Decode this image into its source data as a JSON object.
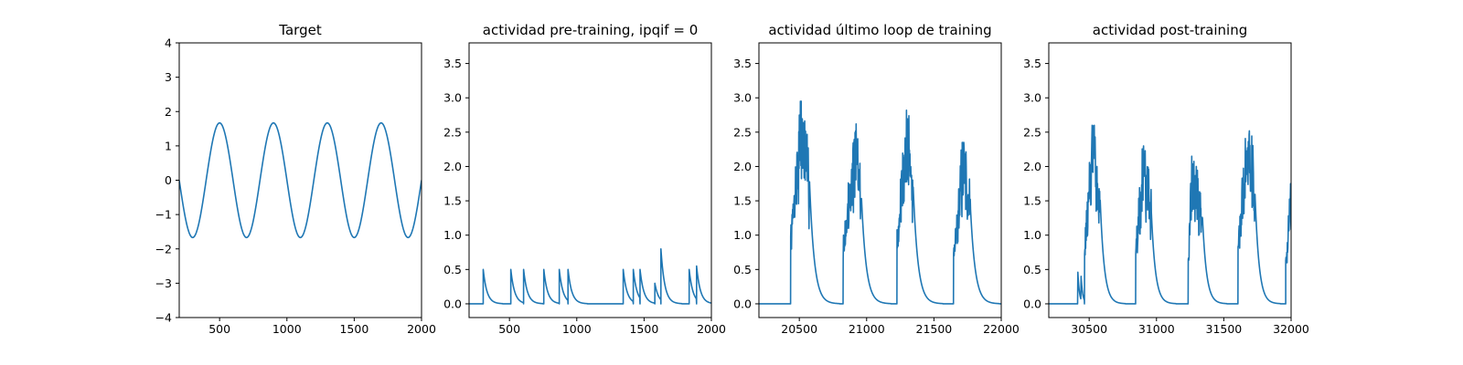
{
  "figure": {
    "line_color": "#1f77b4"
  },
  "chart_data": [
    {
      "type": "line",
      "title": "Target",
      "xlim": [
        200,
        2000
      ],
      "ylim": [
        -4,
        4
      ],
      "xticks": [
        500,
        1000,
        1500,
        2000
      ],
      "yticks": [
        -4,
        -3,
        -2,
        -1,
        0,
        1,
        2,
        3,
        4
      ],
      "xtick_labels": [
        "500",
        "1000",
        "1500",
        "2000"
      ],
      "ytick_labels": [
        "−4",
        "−3",
        "−2",
        "−1",
        "0",
        "1",
        "2",
        "3",
        "4"
      ],
      "series": [
        {
          "generator": "sine",
          "amplitude": 1.67,
          "period": 400,
          "peak_at": 500,
          "x_range": [
            200,
            2000
          ]
        }
      ]
    },
    {
      "type": "line",
      "title": "actividad pre-training, ipqif = 0",
      "xlim": [
        200,
        2000
      ],
      "ylim": [
        -0.2,
        3.8
      ],
      "xticks": [
        500,
        1000,
        1500,
        2000
      ],
      "yticks": [
        0.0,
        0.5,
        1.0,
        1.5,
        2.0,
        2.5,
        3.0,
        3.5
      ],
      "xtick_labels": [
        "500",
        "1000",
        "1500",
        "2000"
      ],
      "ytick_labels": [
        "0.0",
        "0.5",
        "1.0",
        "1.5",
        "2.0",
        "2.5",
        "3.0",
        "3.5"
      ],
      "series": [
        {
          "generator": "spikes",
          "x_range": [
            200,
            2000
          ],
          "decay": 28,
          "spikes": [
            [
              305,
              0.5
            ],
            [
              510,
              0.5
            ],
            [
              605,
              0.5
            ],
            [
              755,
              0.5
            ],
            [
              870,
              0.5
            ],
            [
              935,
              0.5
            ],
            [
              1345,
              0.5
            ],
            [
              1420,
              0.5
            ],
            [
              1470,
              0.5
            ],
            [
              1580,
              0.3
            ],
            [
              1625,
              0.8
            ],
            [
              1835,
              0.5
            ],
            [
              1890,
              0.55
            ]
          ]
        }
      ]
    },
    {
      "type": "line",
      "title": "actividad último loop de training",
      "xlim": [
        20200,
        22000
      ],
      "ylim": [
        -0.2,
        3.8
      ],
      "xticks": [
        20500,
        21000,
        21500,
        22000
      ],
      "yticks": [
        0.0,
        0.5,
        1.0,
        1.5,
        2.0,
        2.5,
        3.0,
        3.5
      ],
      "xtick_labels": [
        "20500",
        "21000",
        "21500",
        "22000"
      ],
      "ytick_labels": [
        "0.0",
        "0.5",
        "1.0",
        "1.5",
        "2.0",
        "2.5",
        "3.0",
        "3.5"
      ],
      "series": [
        {
          "generator": "bursts",
          "x_range": [
            20200,
            22000
          ],
          "seed": 7,
          "bursts": [
            {
              "start": 20435,
              "peak_x": 20515,
              "end": 20575,
              "peak": 2.95,
              "decay": 35
            },
            {
              "start": 20825,
              "peak_x": 20920,
              "end": 20960,
              "peak": 2.62,
              "decay": 35
            },
            {
              "start": 21225,
              "peak_x": 21300,
              "end": 21345,
              "peak": 2.82,
              "decay": 35
            },
            {
              "start": 21645,
              "peak_x": 21720,
              "end": 21770,
              "peak": 2.35,
              "decay": 35
            }
          ]
        }
      ]
    },
    {
      "type": "line",
      "title": "actividad post-training",
      "xlim": [
        30200,
        32000
      ],
      "ylim": [
        -0.2,
        3.8
      ],
      "xticks": [
        30500,
        31000,
        31500,
        32000
      ],
      "yticks": [
        0.0,
        0.5,
        1.0,
        1.5,
        2.0,
        2.5,
        3.0,
        3.5
      ],
      "xtick_labels": [
        "30500",
        "31000",
        "31500",
        "32000"
      ],
      "ytick_labels": [
        "0.0",
        "0.5",
        "1.0",
        "1.5",
        "2.0",
        "2.5",
        "3.0",
        "3.5"
      ],
      "series": [
        {
          "generator": "bursts",
          "x_range": [
            30200,
            32000
          ],
          "seed": 13,
          "pre_spikes": [
            [
              30415,
              0.5
            ],
            [
              30440,
              0.4
            ]
          ],
          "bursts": [
            {
              "start": 30465,
              "peak_x": 30525,
              "end": 30580,
              "peak": 2.6,
              "decay": 30
            },
            {
              "start": 30845,
              "peak_x": 30905,
              "end": 30960,
              "peak": 2.3,
              "decay": 30
            },
            {
              "start": 31235,
              "peak_x": 31265,
              "end": 31340,
              "peak": 2.15,
              "decay": 30
            },
            {
              "start": 31605,
              "peak_x": 31690,
              "end": 31730,
              "peak": 2.75,
              "decay": 30
            },
            {
              "start": 31960,
              "peak_x": 31995,
              "end": 32000,
              "peak": 1.75,
              "decay": 30
            }
          ]
        }
      ]
    }
  ]
}
